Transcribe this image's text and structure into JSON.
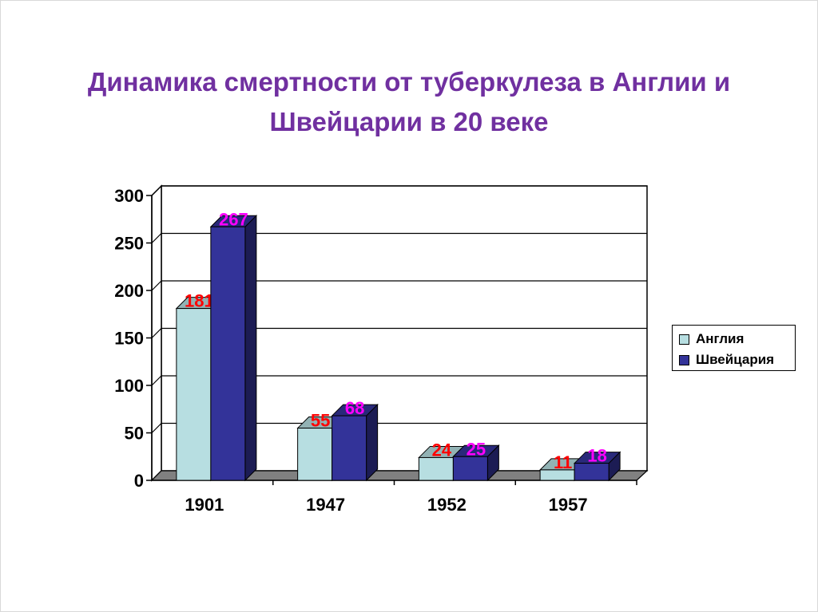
{
  "slide": {
    "title_line1": "Динамика смертности от туберкулеза в Англии и",
    "title_line2": "Швейцарии в 20 веке"
  },
  "chart_data": {
    "type": "bar",
    "categories": [
      "1901",
      "1947",
      "1952",
      "1957"
    ],
    "series": [
      {
        "name": "Англия",
        "values": [
          181,
          55,
          24,
          11
        ],
        "color": "#b7dee1",
        "label_color": "#ff0000"
      },
      {
        "name": "Швейцария",
        "values": [
          267,
          68,
          25,
          18
        ],
        "color": "#333399",
        "label_color": "#ff00ff"
      }
    ],
    "y_ticks": [
      "0",
      "50",
      "100",
      "150",
      "200",
      "250",
      "300"
    ],
    "ylim": [
      0,
      300
    ],
    "grid": true,
    "three_d": true,
    "legend_position": "right"
  }
}
